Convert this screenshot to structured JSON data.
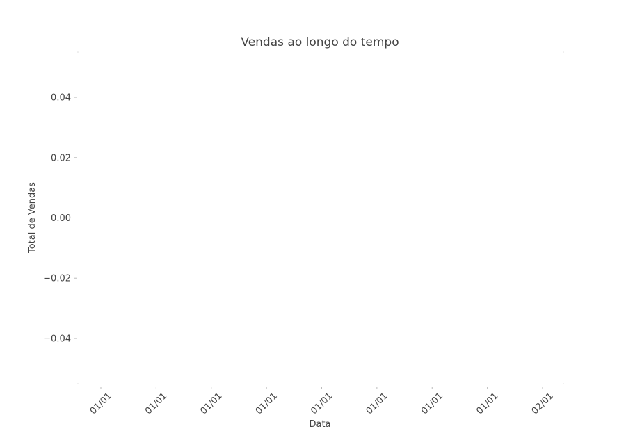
{
  "chart_data": {
    "type": "line",
    "title": "Vendas ao longo do tempo",
    "xlabel": "Data",
    "ylabel": "Total de Vendas",
    "x_ticks": [
      "01/01",
      "01/01",
      "01/01",
      "01/01",
      "01/01",
      "01/01",
      "01/01",
      "01/01",
      "02/01"
    ],
    "y_ticks": [
      0.04,
      0.02,
      0.0,
      -0.02,
      -0.04
    ],
    "y_tick_labels": [
      "0.04",
      "0.02",
      "0.00",
      "−0.02",
      "−0.04"
    ],
    "ylim": [
      -0.055,
      0.055
    ],
    "grid": false,
    "series": []
  }
}
